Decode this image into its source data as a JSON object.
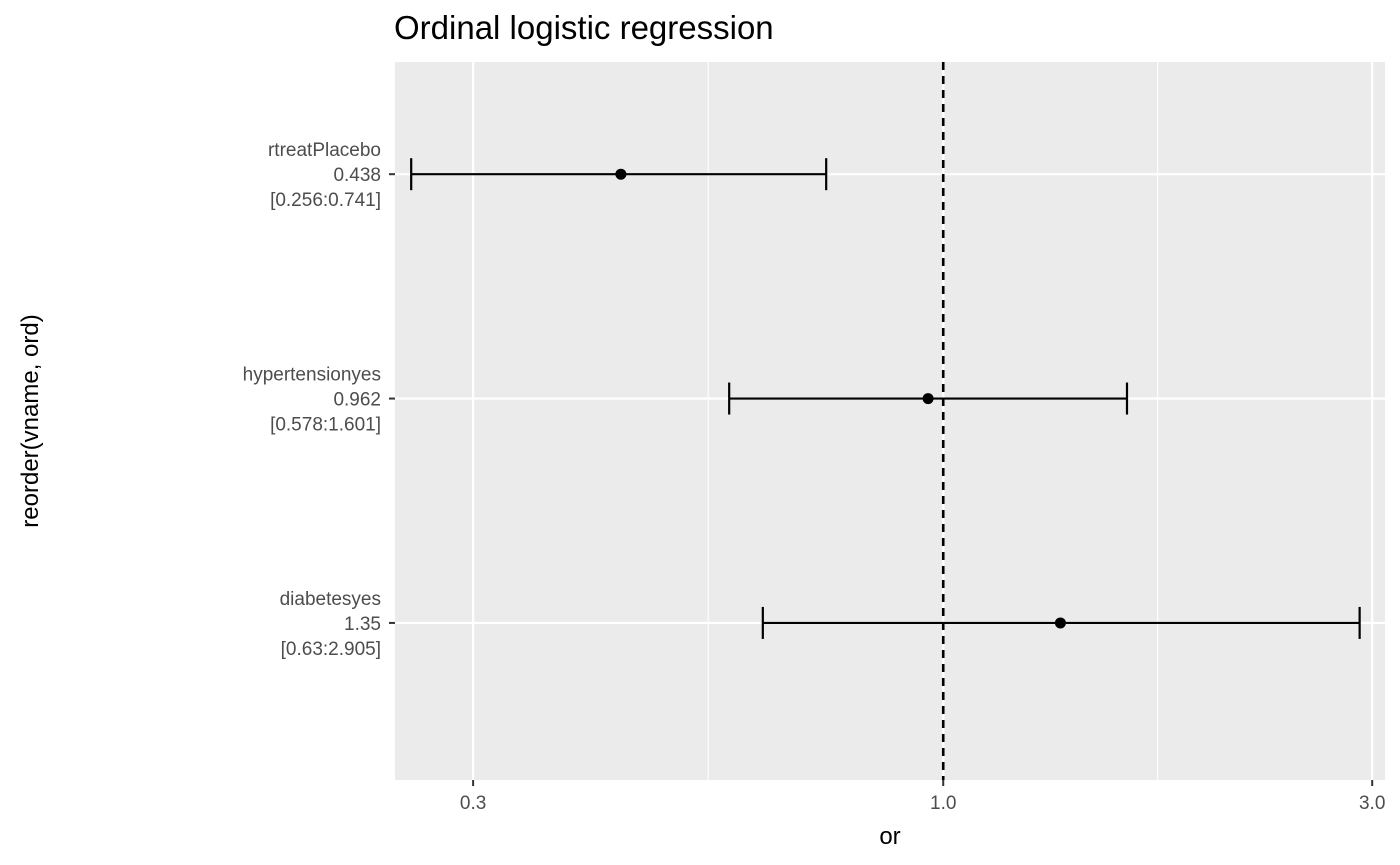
{
  "chart_data": {
    "type": "forest",
    "title": "Ordinal logistic regression",
    "xlabel": "or",
    "ylabel": "reorder(vname, ord)",
    "x_scale": "log10",
    "xlim": [
      0.2456,
      3.1
    ],
    "x_ticks": [
      {
        "value": 0.3,
        "label": "0.3"
      },
      {
        "value": 1.0,
        "label": "1.0"
      },
      {
        "value": 3.0,
        "label": "3.0"
      }
    ],
    "reference_line": 1.0,
    "grid": true,
    "panel_background": "#ebebeb",
    "grid_color": "#ffffff",
    "mark_color": "#000000",
    "rows": [
      {
        "name": "rtreatPlacebo",
        "estimate_label": "0.438",
        "ci_label": "[0.256:0.741]",
        "estimate": 0.438,
        "lower": 0.256,
        "upper": 0.741
      },
      {
        "name": "hypertensionyes",
        "estimate_label": "0.962",
        "ci_label": "[0.578:1.601]",
        "estimate": 0.962,
        "lower": 0.578,
        "upper": 1.601
      },
      {
        "name": "diabetesyes",
        "estimate_label": "1.35",
        "ci_label": "[0.63:2.905]",
        "estimate": 1.35,
        "lower": 0.63,
        "upper": 2.905
      }
    ]
  }
}
